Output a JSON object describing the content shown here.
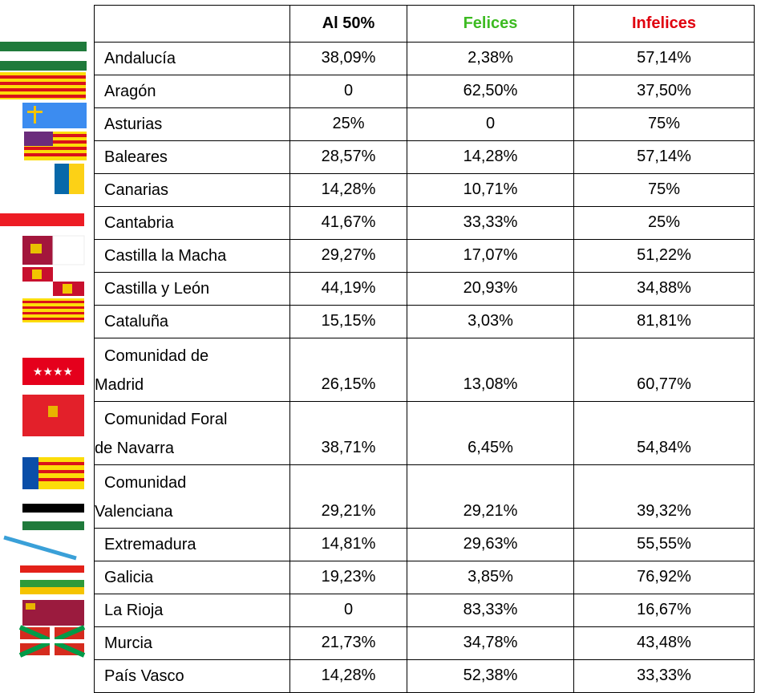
{
  "table": {
    "header": [
      "Al 50%",
      "Felices",
      "Infelices"
    ],
    "rows": [
      {
        "name": [
          "Andalucía"
        ],
        "values": [
          "38,09%",
          "2,38%",
          "57,14%"
        ]
      },
      {
        "name": [
          "Aragón"
        ],
        "values": [
          "0",
          "62,50%",
          "37,50%"
        ]
      },
      {
        "name": [
          "Asturias"
        ],
        "values": [
          "25%",
          "0",
          "75%"
        ]
      },
      {
        "name": [
          "Baleares"
        ],
        "values": [
          "28,57%",
          "14,28%",
          "57,14%"
        ]
      },
      {
        "name": [
          "Canarias"
        ],
        "values": [
          "14,28%",
          "10,71%",
          "75%"
        ]
      },
      {
        "name": [
          "Cantabria"
        ],
        "values": [
          "41,67%",
          "33,33%",
          "25%"
        ]
      },
      {
        "name": [
          "Castilla la Macha"
        ],
        "values": [
          "29,27%",
          "17,07%",
          "51,22%"
        ]
      },
      {
        "name": [
          "Castilla y León"
        ],
        "values": [
          "44,19%",
          "20,93%",
          "34,88%"
        ]
      },
      {
        "name": [
          "Cataluña"
        ],
        "values": [
          "15,15%",
          "3,03%",
          "81,81%"
        ]
      },
      {
        "name": [
          "Comunidad de",
          "Madrid"
        ],
        "values": [
          "26,15%",
          "13,08%",
          "60,77%"
        ]
      },
      {
        "name": [
          "Comunidad Foral",
          "de Navarra"
        ],
        "values": [
          "38,71%",
          "6,45%",
          "54,84%"
        ]
      },
      {
        "name": [
          "Comunidad",
          "Valenciana"
        ],
        "values": [
          "29,21%",
          "29,21%",
          "39,32%"
        ]
      },
      {
        "name": [
          "Extremadura"
        ],
        "values": [
          "14,81%",
          "29,63%",
          "55,55%"
        ]
      },
      {
        "name": [
          "Galicia"
        ],
        "values": [
          "19,23%",
          "3,85%",
          "76,92%"
        ]
      },
      {
        "name": [
          "La Rioja"
        ],
        "values": [
          "0",
          "83,33%",
          "16,67%"
        ]
      },
      {
        "name": [
          "Murcia"
        ],
        "values": [
          "21,73%",
          "34,78%",
          "43,48%"
        ]
      },
      {
        "name": [
          "País Vasco"
        ],
        "values": [
          "14,28%",
          "52,38%",
          "33,33%"
        ]
      }
    ]
  }
}
